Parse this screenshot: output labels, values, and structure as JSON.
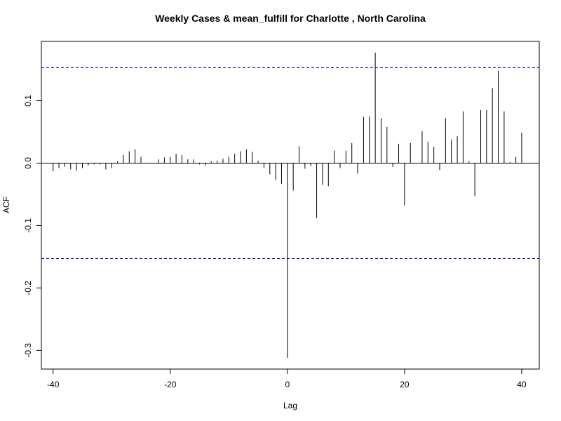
{
  "chart_data": {
    "type": "bar",
    "title": "Weekly Cases & mean_fulfill for Charlotte , North Carolina",
    "xlabel": "Lag",
    "ylabel": "ACF",
    "xlim": [
      -42,
      43
    ],
    "ylim": [
      -0.33,
      0.195
    ],
    "x_ticks": [
      -40,
      -20,
      0,
      20,
      40
    ],
    "x_tick_labels": [
      "-40",
      "-20",
      "0",
      "20",
      "40"
    ],
    "y_ticks": [
      -0.3,
      -0.2,
      -0.1,
      0.0,
      0.1
    ],
    "y_tick_labels": [
      "-0.3",
      "-0.2",
      "-0.1",
      "0.0",
      "0.1"
    ],
    "confidence_bound": 0.153,
    "grid": false,
    "colors": {
      "bars": "#000000",
      "confidence_line": "#0000cc",
      "zero_line": "#000000",
      "frame": "#000000"
    },
    "lags": [
      -40,
      -39,
      -38,
      -37,
      -36,
      -35,
      -34,
      -33,
      -32,
      -31,
      -30,
      -29,
      -28,
      -27,
      -26,
      -25,
      -24,
      -23,
      -22,
      -21,
      -20,
      -19,
      -18,
      -17,
      -16,
      -15,
      -14,
      -13,
      -12,
      -11,
      -10,
      -9,
      -8,
      -7,
      -6,
      -5,
      -4,
      -3,
      -2,
      -1,
      0,
      1,
      2,
      3,
      4,
      5,
      6,
      7,
      8,
      9,
      10,
      11,
      12,
      13,
      14,
      15,
      16,
      17,
      18,
      19,
      20,
      21,
      22,
      23,
      24,
      25,
      26,
      27,
      28,
      29,
      30,
      31,
      32,
      33,
      34,
      35,
      36,
      37,
      38,
      39,
      40
    ],
    "values": [
      -0.013,
      -0.008,
      -0.006,
      -0.01,
      -0.012,
      -0.008,
      -0.004,
      -0.002,
      -0.002,
      -0.01,
      -0.008,
      0.003,
      0.013,
      0.019,
      0.022,
      0.01,
      0.0,
      0.0,
      0.006,
      0.009,
      0.01,
      0.015,
      0.013,
      0.006,
      0.006,
      -0.002,
      -0.004,
      0.003,
      0.004,
      0.007,
      0.01,
      0.015,
      0.019,
      0.022,
      0.018,
      0.004,
      -0.008,
      -0.018,
      -0.027,
      -0.033,
      -0.312,
      -0.044,
      0.027,
      -0.009,
      -0.005,
      -0.088,
      -0.035,
      -0.037,
      0.02,
      -0.008,
      0.02,
      0.032,
      -0.017,
      0.074,
      0.075,
      0.177,
      0.072,
      0.058,
      -0.006,
      0.031,
      -0.068,
      0.032,
      0.0,
      0.051,
      0.034,
      0.026,
      -0.011,
      0.072,
      0.038,
      0.043,
      0.083,
      0.003,
      -0.053,
      0.085,
      0.085,
      0.12,
      0.148,
      0.083,
      0.002,
      0.01,
      0.049
    ]
  }
}
